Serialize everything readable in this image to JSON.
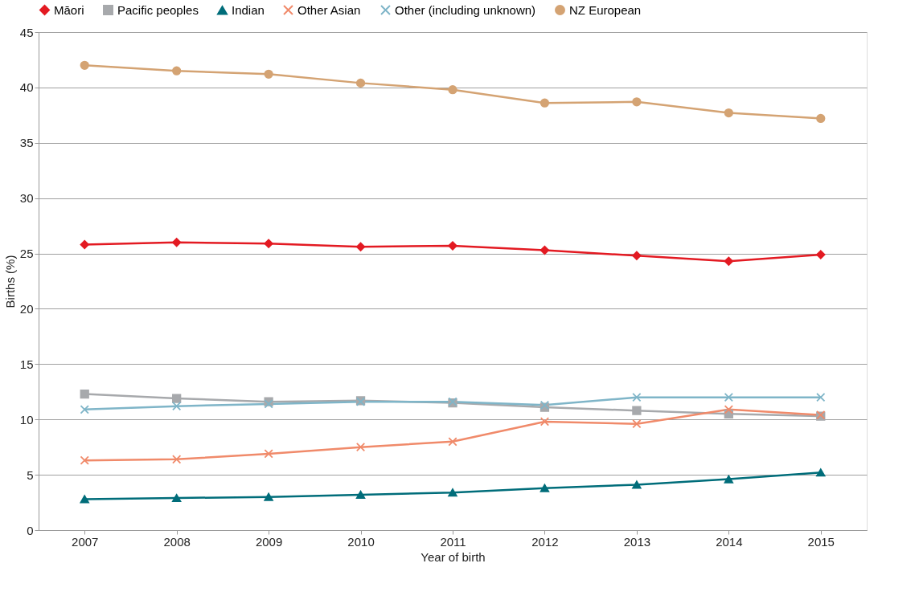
{
  "chart_data": {
    "type": "line",
    "xlabel": "Year of birth",
    "ylabel": "Births (%)",
    "categories": [
      "2007",
      "2008",
      "2009",
      "2010",
      "2011",
      "2012",
      "2013",
      "2014",
      "2015"
    ],
    "series": [
      {
        "name": "Māori",
        "color": "#e31a22",
        "marker": "diamond",
        "values": [
          25.8,
          26.0,
          25.9,
          25.6,
          25.7,
          25.3,
          24.8,
          24.3,
          24.9
        ]
      },
      {
        "name": "Pacific peoples",
        "color": "#a7a9ac",
        "marker": "square",
        "values": [
          12.3,
          11.9,
          11.6,
          11.7,
          11.5,
          11.1,
          10.8,
          10.5,
          10.3
        ]
      },
      {
        "name": "Indian",
        "color": "#006d7a",
        "marker": "triangle",
        "values": [
          2.8,
          2.9,
          3.0,
          3.2,
          3.4,
          3.8,
          4.1,
          4.6,
          5.2
        ]
      },
      {
        "name": "Other Asian",
        "color": "#f08a6a",
        "marker": "cross",
        "values": [
          6.3,
          6.4,
          6.9,
          7.5,
          8.0,
          9.8,
          9.6,
          10.9,
          10.4
        ]
      },
      {
        "name": "Other (including unknown)",
        "color": "#7fb5c8",
        "marker": "cross",
        "values": [
          10.9,
          11.2,
          11.4,
          11.6,
          11.6,
          11.3,
          12.0,
          12.0,
          12.0
        ]
      },
      {
        "name": "NZ European",
        "color": "#d4a373",
        "marker": "circle",
        "values": [
          42.0,
          41.5,
          41.2,
          40.4,
          39.8,
          38.6,
          38.7,
          37.7,
          37.2
        ]
      }
    ],
    "ylim": [
      0,
      45
    ],
    "yticks": [
      0,
      5,
      10,
      15,
      20,
      25,
      30,
      35,
      40,
      45
    ],
    "grid": "y",
    "legend": "top",
    "line_style": "solid"
  }
}
